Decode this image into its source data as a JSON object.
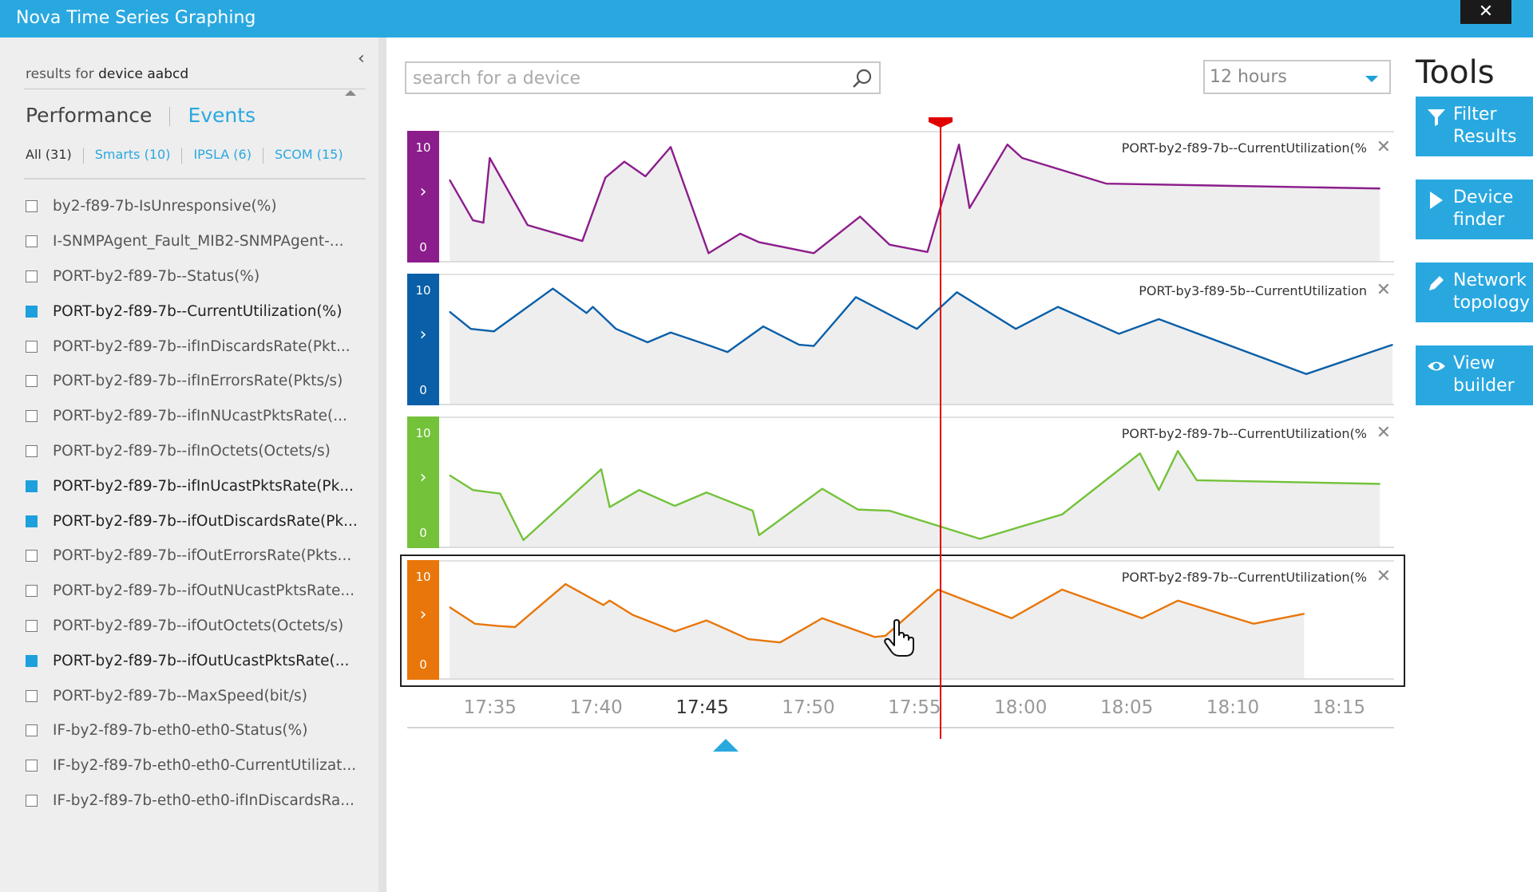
{
  "window": {
    "title": "Nova Time Series Graphing",
    "close_label": "✕"
  },
  "sidebar": {
    "collapse_label": "‹",
    "results_prefix": "results for",
    "results_device": "device aabcd",
    "tabs": {
      "performance": "Performance",
      "events": "Events"
    },
    "filters": [
      {
        "label": "All (31)",
        "active": true
      },
      {
        "label": "Smarts (10)",
        "active": false
      },
      {
        "label": "IPSLA (6)",
        "active": false
      },
      {
        "label": "SCOM (15)",
        "active": false
      }
    ],
    "metrics": [
      {
        "label": "by2-f89-7b-IsUnresponsive(%)",
        "checked": false
      },
      {
        "label": "I-SNMPAgent_Fault_MIB2-SNMPAgent-...",
        "checked": false
      },
      {
        "label": "PORT-by2-f89-7b--Status(%)",
        "checked": false
      },
      {
        "label": "PORT-by2-f89-7b--CurrentUtilization(%)",
        "checked": true
      },
      {
        "label": "PORT-by2-f89-7b--ifInDiscardsRate(Pkt...",
        "checked": false
      },
      {
        "label": "PORT-by2-f89-7b--ifInErrorsRate(Pkts/s)",
        "checked": false
      },
      {
        "label": "PORT-by2-f89-7b--ifInNUcastPktsRate(...",
        "checked": false
      },
      {
        "label": "PORT-by2-f89-7b--ifInOctets(Octets/s)",
        "checked": false
      },
      {
        "label": "PORT-by2-f89-7b--ifInUcastPktsRate(Pk...",
        "checked": true
      },
      {
        "label": "PORT-by2-f89-7b--ifOutDiscardsRate(Pk...",
        "checked": true
      },
      {
        "label": "PORT-by2-f89-7b--ifOutErrorsRate(Pkts...",
        "checked": false
      },
      {
        "label": "PORT-by2-f89-7b--ifOutNUcastPktsRate...",
        "checked": false
      },
      {
        "label": "PORT-by2-f89-7b--ifOutOctets(Octets/s)",
        "checked": false
      },
      {
        "label": "PORT-by2-f89-7b--ifOutUcastPktsRate(...",
        "checked": true
      },
      {
        "label": "PORT-by2-f89-7b--MaxSpeed(bit/s)",
        "checked": false
      },
      {
        "label": "IF-by2-f89-7b-eth0-eth0-Status(%)",
        "checked": false
      },
      {
        "label": "IF-by2-f89-7b-eth0-eth0-CurrentUtilizat...",
        "checked": false
      },
      {
        "label": "IF-by2-f89-7b-eth0-eth0-ifInDiscardsRa...",
        "checked": false
      }
    ]
  },
  "search": {
    "placeholder": "search for a device",
    "icon": "search-icon"
  },
  "time_range": {
    "selected": "12 hours"
  },
  "tools": {
    "title": "Tools",
    "buttons": [
      {
        "label": "Filter Results",
        "icon": "filter-icon"
      },
      {
        "label": "Device finder",
        "icon": "play-icon"
      },
      {
        "label": "Network topology",
        "icon": "pencil-icon"
      },
      {
        "label": "View builder",
        "icon": "eye-icon"
      }
    ]
  },
  "colors": {
    "accent": "#29a8e0",
    "cursor": "#e00000",
    "fill": "#eeeeee"
  },
  "chart_data": [
    {
      "type": "line",
      "title": "PORT-by2-f89-7b--CurrentUtilization(%",
      "color": "#8c1d8c",
      "ylim": [
        0,
        10
      ],
      "x_minutes_range": [
        32.6,
        77.6
      ],
      "points": [
        [
          32.8,
          6.5
        ],
        [
          33.9,
          3.2
        ],
        [
          34.4,
          3.0
        ],
        [
          34.7,
          8.3
        ],
        [
          36.5,
          2.8
        ],
        [
          39.1,
          1.5
        ],
        [
          40.2,
          6.7
        ],
        [
          41.1,
          8.0
        ],
        [
          42.1,
          6.8
        ],
        [
          43.3,
          9.2
        ],
        [
          45.1,
          0.5
        ],
        [
          46.6,
          2.1
        ],
        [
          47.5,
          1.4
        ],
        [
          50.1,
          0.5
        ],
        [
          52.3,
          3.5
        ],
        [
          53.7,
          1.2
        ],
        [
          55.5,
          0.6
        ],
        [
          57.0,
          9.4
        ],
        [
          57.5,
          4.2
        ],
        [
          59.3,
          9.4
        ],
        [
          60.0,
          8.3
        ],
        [
          64.0,
          6.2
        ],
        [
          77.0,
          5.8
        ]
      ]
    },
    {
      "type": "line",
      "title": "PORT-by3-f89-5b--CurrentUtilization",
      "color": "#0a5fa8",
      "ylim": [
        0,
        10
      ],
      "x_minutes_range": [
        32.6,
        77.6
      ],
      "points": [
        [
          32.8,
          7.4
        ],
        [
          33.8,
          6.0
        ],
        [
          34.9,
          5.8
        ],
        [
          37.7,
          9.3
        ],
        [
          39.3,
          7.3
        ],
        [
          39.6,
          7.8
        ],
        [
          40.7,
          6.0
        ],
        [
          42.2,
          4.9
        ],
        [
          43.3,
          5.7
        ],
        [
          45.2,
          4.6
        ],
        [
          46.0,
          4.1
        ],
        [
          47.7,
          6.2
        ],
        [
          49.4,
          4.7
        ],
        [
          50.1,
          4.6
        ],
        [
          52.1,
          8.6
        ],
        [
          55.0,
          6.0
        ],
        [
          56.9,
          9.0
        ],
        [
          59.7,
          6.0
        ],
        [
          61.7,
          7.8
        ],
        [
          64.6,
          5.6
        ],
        [
          66.5,
          6.8
        ],
        [
          73.5,
          2.3
        ],
        [
          77.6,
          4.7
        ]
      ]
    },
    {
      "type": "line",
      "title": "PORT-by2-f89-7b--CurrentUtilization(%",
      "color": "#73c23a",
      "ylim": [
        0,
        10
      ],
      "x_minutes_range": [
        32.6,
        77.6
      ],
      "points": [
        [
          32.8,
          5.7
        ],
        [
          33.9,
          4.5
        ],
        [
          35.2,
          4.2
        ],
        [
          36.3,
          0.4
        ],
        [
          40.0,
          6.2
        ],
        [
          40.4,
          3.1
        ],
        [
          41.8,
          4.5
        ],
        [
          43.5,
          3.2
        ],
        [
          45.0,
          4.3
        ],
        [
          47.2,
          2.8
        ],
        [
          47.5,
          0.8
        ],
        [
          50.5,
          4.6
        ],
        [
          52.2,
          2.9
        ],
        [
          53.7,
          2.8
        ],
        [
          58.0,
          0.5
        ],
        [
          61.9,
          2.5
        ],
        [
          65.6,
          7.5
        ],
        [
          66.5,
          4.5
        ],
        [
          67.4,
          7.7
        ],
        [
          68.3,
          5.3
        ],
        [
          77.0,
          5.0
        ]
      ]
    },
    {
      "type": "line",
      "title": "PORT-by2-f89-7b--CurrentUtilization(%",
      "color": "#e8760a",
      "ylim": [
        0,
        10
      ],
      "x_minutes_range": [
        32.6,
        77.6
      ],
      "points": [
        [
          32.8,
          6.3
        ],
        [
          34.0,
          4.8
        ],
        [
          35.1,
          4.6
        ],
        [
          35.9,
          4.5
        ],
        [
          38.3,
          8.4
        ],
        [
          40.1,
          6.5
        ],
        [
          40.4,
          6.9
        ],
        [
          41.5,
          5.6
        ],
        [
          43.5,
          4.1
        ],
        [
          45.0,
          5.1
        ],
        [
          47.0,
          3.4
        ],
        [
          48.5,
          3.1
        ],
        [
          50.5,
          5.3
        ],
        [
          53.0,
          3.6
        ],
        [
          53.5,
          3.7
        ],
        [
          56.0,
          7.9
        ],
        [
          59.5,
          5.3
        ],
        [
          61.9,
          7.9
        ],
        [
          65.7,
          5.3
        ],
        [
          67.4,
          6.9
        ],
        [
          71.0,
          4.8
        ],
        [
          73.4,
          5.7
        ]
      ]
    }
  ],
  "time_axis": {
    "ticks": [
      "17:35",
      "17:40",
      "17:45",
      "17:50",
      "17:55",
      "18:00",
      "18:05",
      "18:10",
      "18:15"
    ],
    "tick_minutes": [
      35,
      40,
      45,
      50,
      55,
      60,
      65,
      70,
      75
    ],
    "current_index": 2,
    "cursor_minute": 56.2,
    "marker_minute": 46.1
  }
}
